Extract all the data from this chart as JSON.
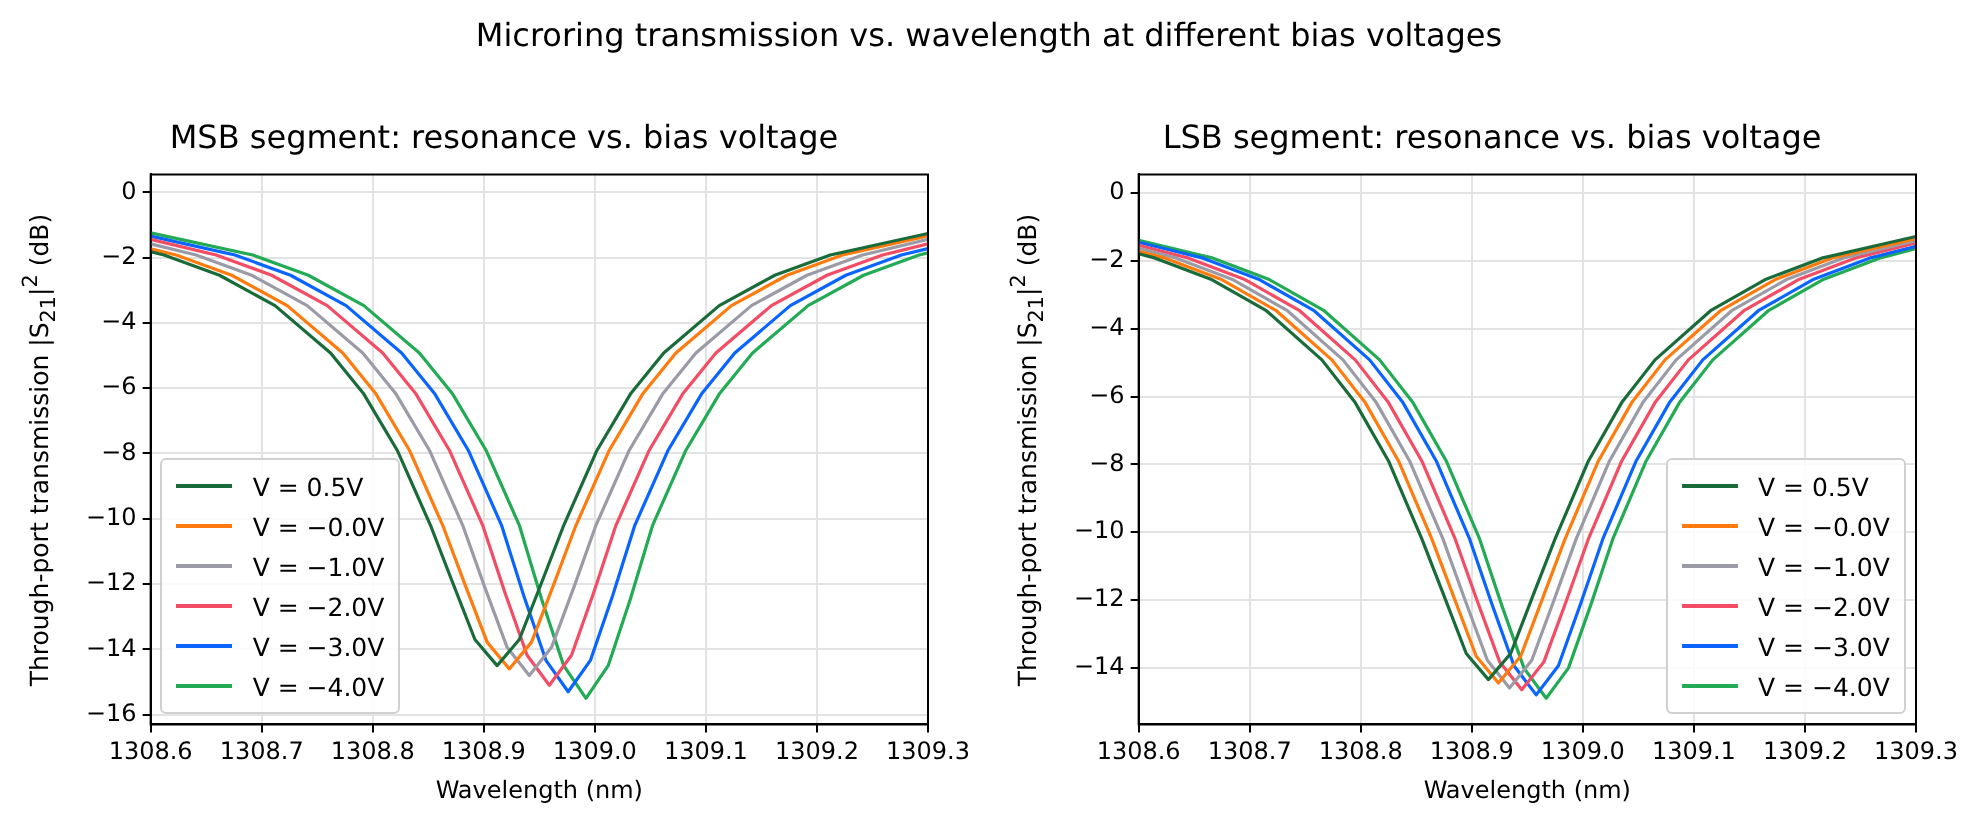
{
  "chart_data": [
    {
      "type": "line",
      "title": "MSB segment: resonance vs. bias voltage",
      "annotations": [
        "Microring transmission vs. wavelength at different bias voltages"
      ],
      "xlabel": "Wavelength (nm)",
      "ylabel": "Through-port transmission |S$_{21}$|$^{2}$ (dB)",
      "xlim": [
        1308.6,
        1309.3
      ],
      "xticks": [
        1308.6,
        1308.7,
        1308.8,
        1308.9,
        {
          "value": 1309.0,
          "label": "1309.0"
        },
        1309.1,
        1309.2,
        1309.3
      ],
      "ylim": [
        -16.3,
        0.55
      ],
      "yticks": [
        {
          "value": 0,
          "label": "0"
        },
        {
          "value": -2,
          "label": "−2"
        },
        {
          "value": -4,
          "label": "−4"
        },
        {
          "value": -6,
          "label": "−6"
        },
        {
          "value": -8,
          "label": "−8"
        },
        {
          "value": -10,
          "label": "−10"
        },
        {
          "value": -12,
          "label": "−12"
        },
        {
          "value": -14,
          "label": "−14"
        },
        {
          "value": -16,
          "label": "−16"
        }
      ],
      "grid": true,
      "legend": "bottom left",
      "line_style": "solid",
      "marker": "none",
      "series": [
        {
          "name": "V = 0.5V",
          "color": "#1a6b3a",
          "x": [
            1308.6,
            1308.612,
            1308.662,
            1308.712,
            1308.762,
            1308.792,
            1308.822,
            1308.852,
            1308.872,
            1308.892,
            1308.912,
            1308.932,
            1308.952,
            1308.972,
            1309.002,
            1309.032,
            1309.062,
            1309.112,
            1309.162,
            1309.212,
            1309.3
          ],
          "values": [
            -1.82,
            -1.92,
            -2.54,
            -3.47,
            -4.92,
            -6.18,
            -7.9,
            -10.2,
            -11.96,
            -13.7,
            -14.5,
            -13.7,
            -11.96,
            -10.2,
            -7.9,
            -6.18,
            -4.92,
            -3.47,
            -2.54,
            -1.92,
            -1.26
          ]
        },
        {
          "name": "V = −0.0V",
          "color": "#ff7b0e",
          "x": [
            1308.6,
            1308.623,
            1308.673,
            1308.723,
            1308.773,
            1308.803,
            1308.833,
            1308.863,
            1308.883,
            1308.903,
            1308.923,
            1308.943,
            1308.963,
            1308.983,
            1309.013,
            1309.043,
            1309.073,
            1309.123,
            1309.173,
            1309.223,
            1309.3
          ],
          "values": [
            -1.73,
            -1.92,
            -2.54,
            -3.47,
            -4.92,
            -6.18,
            -7.9,
            -10.2,
            -12.01,
            -13.78,
            -14.6,
            -13.78,
            -12.01,
            -10.2,
            -7.9,
            -6.18,
            -4.92,
            -3.47,
            -2.54,
            -1.92,
            -1.33
          ]
        },
        {
          "name": "V = −1.0V",
          "color": "#9b9ba8",
          "x": [
            1308.6,
            1308.641,
            1308.691,
            1308.741,
            1308.791,
            1308.821,
            1308.851,
            1308.881,
            1308.901,
            1308.921,
            1308.941,
            1308.961,
            1308.981,
            1309.001,
            1309.031,
            1309.061,
            1309.091,
            1309.141,
            1309.191,
            1309.241,
            1309.3
          ],
          "values": [
            -1.58,
            -1.92,
            -2.54,
            -3.47,
            -4.92,
            -6.18,
            -7.9,
            -10.2,
            -12.11,
            -13.94,
            -14.8,
            -13.94,
            -12.11,
            -10.2,
            -7.9,
            -6.18,
            -4.92,
            -3.47,
            -2.54,
            -1.92,
            -1.44
          ]
        },
        {
          "name": "V = −2.0V",
          "color": "#f24d64",
          "x": [
            1308.6,
            1308.659,
            1308.709,
            1308.759,
            1308.809,
            1308.839,
            1308.869,
            1308.899,
            1308.919,
            1308.939,
            1308.959,
            1308.979,
            1308.999,
            1309.019,
            1309.049,
            1309.079,
            1309.109,
            1309.159,
            1309.209,
            1309.259,
            1309.3
          ],
          "values": [
            -1.44,
            -1.92,
            -2.54,
            -3.47,
            -4.92,
            -6.18,
            -7.9,
            -10.2,
            -12.26,
            -14.18,
            -15.1,
            -14.18,
            -12.26,
            -10.2,
            -7.9,
            -6.18,
            -4.92,
            -3.47,
            -2.54,
            -1.92,
            -1.58
          ]
        },
        {
          "name": "V = −3.0V",
          "color": "#0a64ff",
          "x": [
            1308.6,
            1308.676,
            1308.726,
            1308.776,
            1308.826,
            1308.856,
            1308.886,
            1308.916,
            1308.936,
            1308.956,
            1308.976,
            1308.996,
            1309.016,
            1309.036,
            1309.066,
            1309.096,
            1309.126,
            1309.176,
            1309.226,
            1309.276,
            1309.3
          ],
          "values": [
            -1.34,
            -1.92,
            -2.54,
            -3.47,
            -4.92,
            -6.18,
            -7.9,
            -10.2,
            -12.36,
            -14.34,
            -15.3,
            -14.34,
            -12.36,
            -10.2,
            -7.9,
            -6.18,
            -4.92,
            -3.47,
            -2.54,
            -1.92,
            -1.72
          ]
        },
        {
          "name": "V = −4.0V",
          "color": "#22aa55",
          "x": [
            1308.6,
            1308.692,
            1308.742,
            1308.792,
            1308.842,
            1308.872,
            1308.902,
            1308.932,
            1308.952,
            1308.972,
            1308.992,
            1309.012,
            1309.032,
            1309.052,
            1309.082,
            1309.112,
            1309.142,
            1309.192,
            1309.242,
            1309.292,
            1309.3
          ],
          "values": [
            -1.24,
            -1.92,
            -2.54,
            -3.47,
            -4.92,
            -6.18,
            -7.9,
            -10.2,
            -12.46,
            -14.5,
            -15.5,
            -14.5,
            -12.46,
            -10.2,
            -7.9,
            -6.18,
            -4.92,
            -3.47,
            -2.54,
            -1.92,
            -1.85
          ]
        }
      ]
    },
    {
      "type": "line",
      "title": "LSB segment: resonance vs. bias voltage",
      "xlabel": "Wavelength (nm)",
      "ylabel": "Through-port transmission |S$_{21}$|$^{2}$ (dB)",
      "xlim": [
        1308.6,
        1309.3
      ],
      "xticks": [
        1308.6,
        1308.7,
        1308.8,
        1308.9,
        {
          "value": 1309.0,
          "label": "1309.0"
        },
        1309.1,
        1309.2,
        1309.3
      ],
      "ylim": [
        -15.67,
        0.55
      ],
      "yticks": [
        {
          "value": 0,
          "label": "0"
        },
        {
          "value": -2,
          "label": "−2"
        },
        {
          "value": -4,
          "label": "−4"
        },
        {
          "value": -6,
          "label": "−6"
        },
        {
          "value": -8,
          "label": "−8"
        },
        {
          "value": -10,
          "label": "−10"
        },
        {
          "value": -12,
          "label": "−12"
        },
        {
          "value": -14,
          "label": "−14"
        }
      ],
      "grid": true,
      "legend": "bottom right",
      "line_style": "solid",
      "marker": "none",
      "series": [
        {
          "name": "V = 0.5V",
          "color": "#1a6b3a",
          "x": [
            1308.6,
            1308.615,
            1308.665,
            1308.715,
            1308.765,
            1308.795,
            1308.825,
            1308.855,
            1308.875,
            1308.895,
            1308.915,
            1308.935,
            1308.955,
            1308.975,
            1309.005,
            1309.035,
            1309.065,
            1309.115,
            1309.165,
            1309.215,
            1309.3
          ],
          "values": [
            -1.79,
            -1.92,
            -2.54,
            -3.47,
            -4.92,
            -6.18,
            -7.9,
            -10.2,
            -11.88,
            -13.58,
            -14.35,
            -13.58,
            -11.88,
            -10.2,
            -7.9,
            -6.18,
            -4.92,
            -3.47,
            -2.54,
            -1.92,
            -1.28
          ]
        },
        {
          "name": "V = −0.0V",
          "color": "#ff7b0e",
          "x": [
            1308.6,
            1308.624,
            1308.674,
            1308.724,
            1308.774,
            1308.804,
            1308.834,
            1308.864,
            1308.884,
            1308.904,
            1308.924,
            1308.944,
            1308.964,
            1308.984,
            1309.014,
            1309.044,
            1309.074,
            1309.124,
            1309.174,
            1309.224,
            1309.3
          ],
          "values": [
            -1.72,
            -1.92,
            -2.54,
            -3.47,
            -4.92,
            -6.18,
            -7.9,
            -10.2,
            -11.93,
            -13.66,
            -14.45,
            -13.66,
            -11.93,
            -10.2,
            -7.9,
            -6.18,
            -4.92,
            -3.47,
            -2.54,
            -1.92,
            -1.34
          ]
        },
        {
          "name": "V = −1.0V",
          "color": "#9b9ba8",
          "x": [
            1308.6,
            1308.634,
            1308.684,
            1308.734,
            1308.784,
            1308.814,
            1308.844,
            1308.874,
            1308.894,
            1308.914,
            1308.934,
            1308.954,
            1308.974,
            1308.994,
            1309.024,
            1309.054,
            1309.084,
            1309.134,
            1309.184,
            1309.234,
            1309.3
          ],
          "values": [
            -1.63,
            -1.92,
            -2.54,
            -3.47,
            -4.92,
            -6.18,
            -7.9,
            -10.2,
            -12.01,
            -13.78,
            -14.6,
            -13.78,
            -12.01,
            -10.2,
            -7.9,
            -6.18,
            -4.92,
            -3.47,
            -2.54,
            -1.92,
            -1.4
          ]
        },
        {
          "name": "V = −2.0V",
          "color": "#f24d64",
          "x": [
            1308.6,
            1308.645,
            1308.695,
            1308.745,
            1308.795,
            1308.825,
            1308.855,
            1308.885,
            1308.905,
            1308.925,
            1308.945,
            1308.965,
            1308.985,
            1309.005,
            1309.035,
            1309.065,
            1309.095,
            1309.145,
            1309.195,
            1309.245,
            1309.3
          ],
          "values": [
            -1.54,
            -1.92,
            -2.54,
            -3.47,
            -4.92,
            -6.18,
            -7.9,
            -10.2,
            -12.04,
            -13.82,
            -14.65,
            -13.82,
            -12.04,
            -10.2,
            -7.9,
            -6.18,
            -4.92,
            -3.47,
            -2.54,
            -1.92,
            -1.47
          ]
        },
        {
          "name": "V = −3.0V",
          "color": "#0a64ff",
          "x": [
            1308.6,
            1308.658,
            1308.708,
            1308.758,
            1308.808,
            1308.838,
            1308.868,
            1308.898,
            1308.918,
            1308.938,
            1308.958,
            1308.978,
            1308.998,
            1309.018,
            1309.048,
            1309.078,
            1309.108,
            1309.158,
            1309.208,
            1309.258,
            1309.3
          ],
          "values": [
            -1.45,
            -1.92,
            -2.54,
            -3.47,
            -4.92,
            -6.18,
            -7.9,
            -10.2,
            -12.11,
            -13.94,
            -14.8,
            -13.94,
            -12.11,
            -10.2,
            -7.9,
            -6.18,
            -4.92,
            -3.47,
            -2.54,
            -1.92,
            -1.57
          ]
        },
        {
          "name": "V = −4.0V",
          "color": "#22aa55",
          "x": [
            1308.6,
            1308.667,
            1308.717,
            1308.767,
            1308.817,
            1308.847,
            1308.877,
            1308.907,
            1308.927,
            1308.947,
            1308.967,
            1308.987,
            1309.007,
            1309.027,
            1309.057,
            1309.087,
            1309.117,
            1309.167,
            1309.217,
            1309.267,
            1309.3
          ],
          "values": [
            -1.39,
            -1.92,
            -2.54,
            -3.47,
            -4.92,
            -6.18,
            -7.9,
            -10.2,
            -12.16,
            -14.01,
            -14.9,
            -14.01,
            -12.16,
            -10.2,
            -7.9,
            -6.18,
            -4.92,
            -3.47,
            -2.54,
            -1.92,
            -1.64
          ]
        }
      ]
    }
  ]
}
